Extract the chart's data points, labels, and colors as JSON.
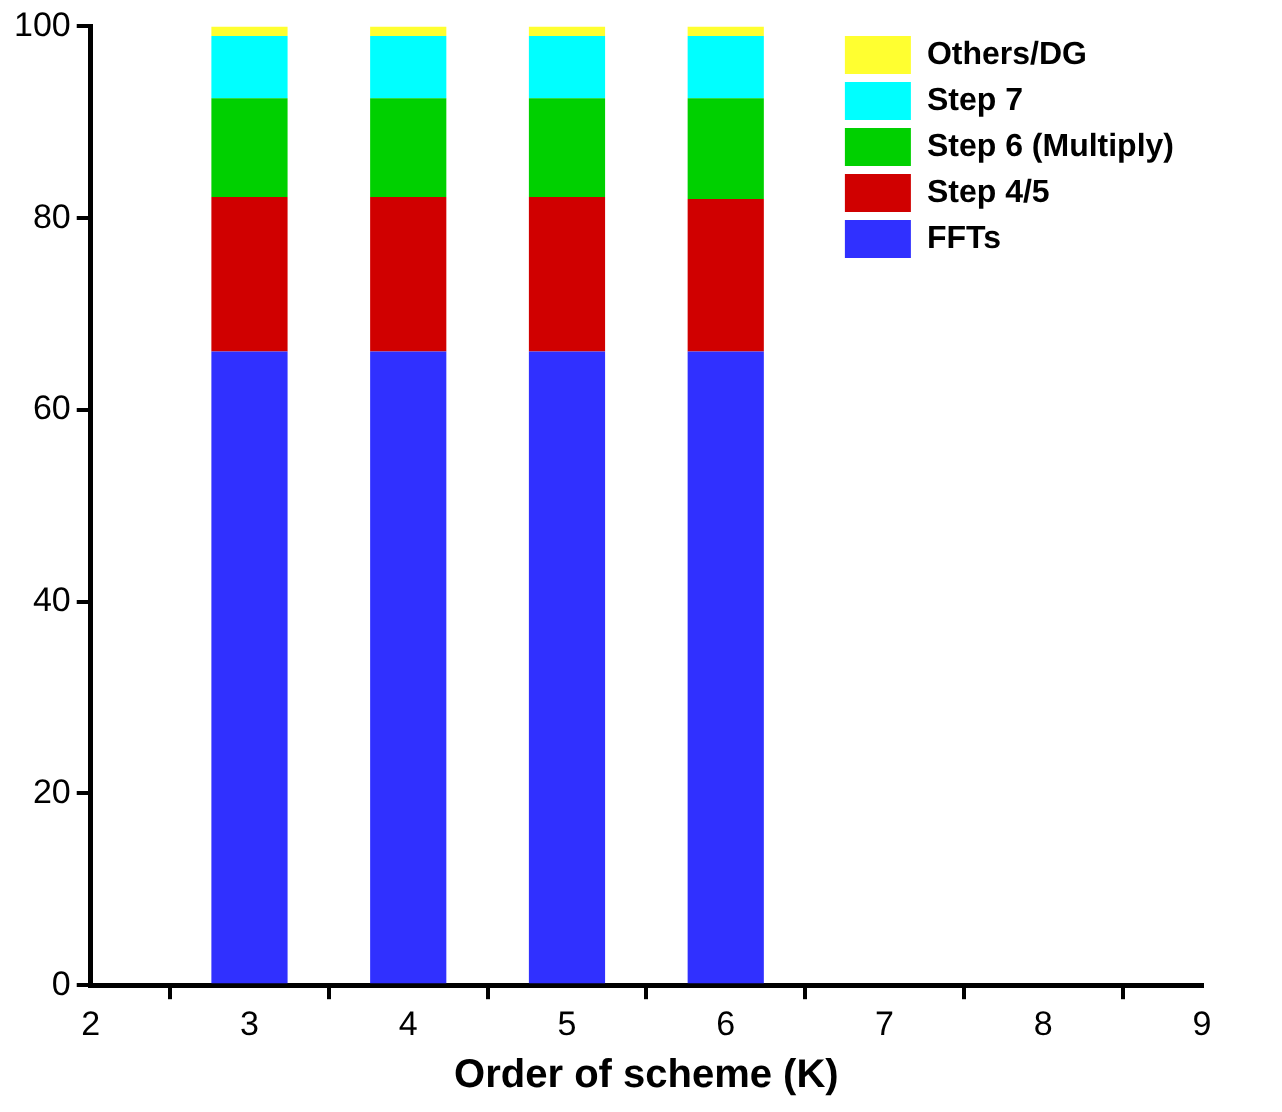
{
  "chart_data": {
    "type": "bar",
    "stacked": true,
    "xlabel": "Order of scheme (K)",
    "x": [
      3,
      4,
      5,
      6
    ],
    "xlim": [
      2,
      9
    ],
    "xticks": [
      2,
      3,
      4,
      5,
      6,
      7,
      8,
      9
    ],
    "ylim": [
      0,
      100
    ],
    "yticks": [
      0,
      20,
      40,
      60,
      80,
      100
    ],
    "grid": false,
    "legend": "top right",
    "series": [
      {
        "name": "FFTs",
        "color": "#3030ff",
        "values": [
          66.1,
          66.1,
          66.1,
          66.1
        ]
      },
      {
        "name": "Step 4/5",
        "color": "#d00000",
        "values": [
          16.1,
          16.1,
          16.1,
          15.9
        ]
      },
      {
        "name": "Step 6 (Multiply)",
        "color": "#00d000",
        "values": [
          10.3,
          10.3,
          10.3,
          10.5
        ]
      },
      {
        "name": "Step 7",
        "color": "#00ffff",
        "values": [
          6.5,
          6.5,
          6.5,
          6.5
        ]
      },
      {
        "name": "Others/DG",
        "color": "#ffff30",
        "values": [
          1.0,
          1.0,
          1.0,
          1.0
        ]
      }
    ]
  }
}
